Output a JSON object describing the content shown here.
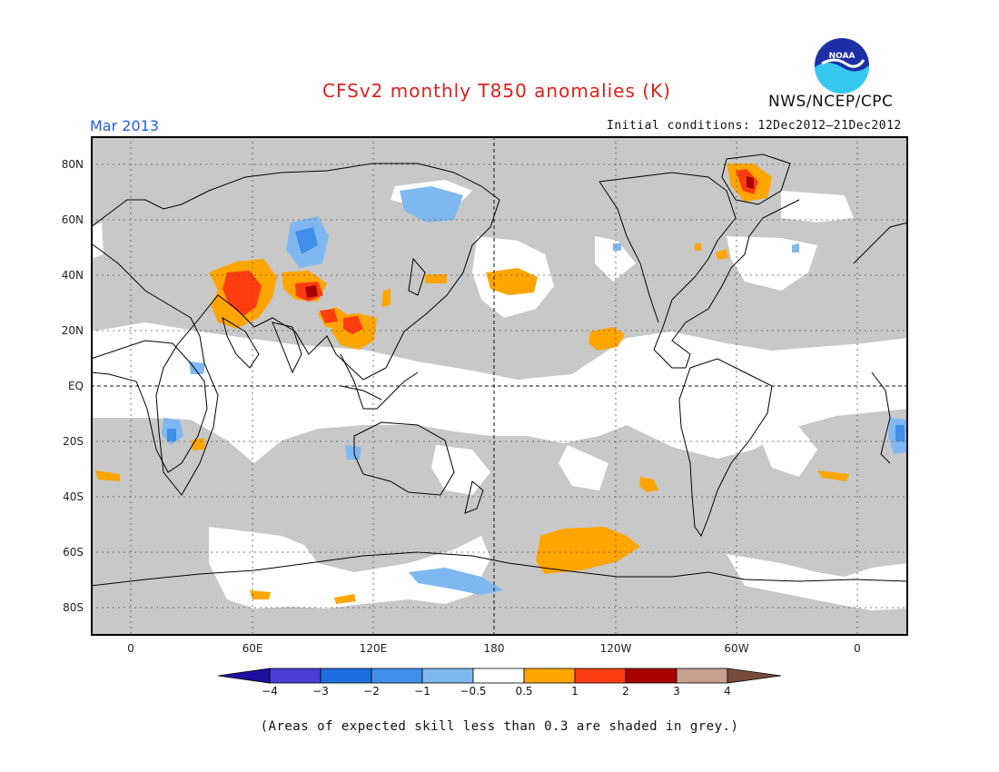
{
  "header": {
    "title": "CFSv2 monthly T850 anomalies (K)",
    "month": "Mar 2013",
    "initial_conditions": "Initial conditions: 12Dec2012—21Dec2012",
    "agency": "NWS/NCEP/CPC",
    "logo_text": "NOAA"
  },
  "map": {
    "lat_labels": [
      "80N",
      "60N",
      "40N",
      "20N",
      "EQ",
      "20S",
      "40S",
      "60S",
      "80S"
    ],
    "lon_labels": [
      "0",
      "60E",
      "120E",
      "180",
      "120W",
      "60W",
      "0"
    ],
    "colors": {
      "grey_mask": "#c8c8c8",
      "neg_05_1": "#7fb8f0",
      "neg_1_2": "#3f8fea",
      "pos_05_1": "#ffa500",
      "pos_1_2": "#ff3d10",
      "pos_2_3": "#a80000",
      "coast": "#000000"
    }
  },
  "colorbar": {
    "labels": [
      "−4",
      "−3",
      "−2",
      "−1",
      "−0.5",
      "0.5",
      "1",
      "2",
      "3",
      "4"
    ],
    "colors": [
      "#1f0fa0",
      "#4a3cd4",
      "#1f6ee0",
      "#3f8fea",
      "#7fb8f0",
      "#ffffff",
      "#ffa500",
      "#ff3d10",
      "#a80000",
      "#c8a090",
      "#7a4a3a"
    ]
  },
  "footer": {
    "note": "(Areas of expected skill less than 0.3 are shaded in grey.)"
  }
}
